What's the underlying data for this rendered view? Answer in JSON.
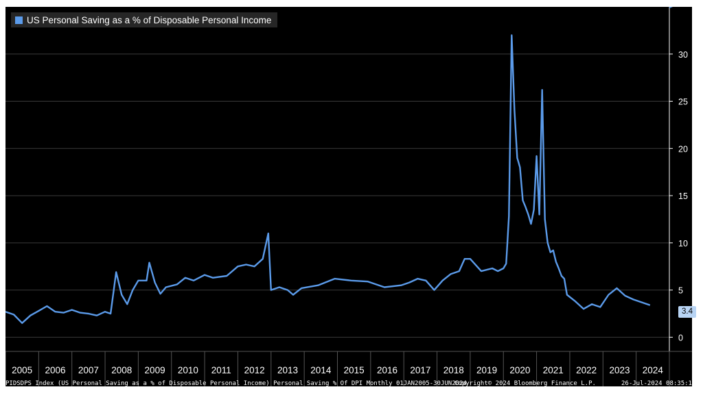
{
  "legend": {
    "label": "US Personal Saving as a % of Disposable Personal Income"
  },
  "footer": {
    "description": "PIDSDPS Index (US Personal Saving as a % of Disposable Personal Income) Personal Saving % Of DPI  Monthly 01JAN2005-30JUN2024",
    "copyright": "Copyright© 2024 Bloomberg Finance L.P.",
    "timestamp": "26-Jul-2024 08:35:14"
  },
  "colors": {
    "background": "#000000",
    "line": "#5b9bea",
    "grid": "#3a3a3a",
    "badge": "#b8d4f4",
    "axis_text": "#ffffff"
  },
  "chart_data": {
    "type": "line",
    "title": "US Personal Saving as a % of Disposable Personal Income",
    "xlabel": "",
    "ylabel": "",
    "ylim": [
      -1.5,
      35
    ],
    "yticks": [
      0,
      5,
      10,
      15,
      20,
      25,
      30
    ],
    "ytick_labels": [
      "0",
      "5",
      "10",
      "15",
      "20",
      "25",
      "30"
    ],
    "y_axis_position": "right",
    "grid": true,
    "legend_position": "top-left",
    "x_tick_labels": [
      "2005",
      "2006",
      "2007",
      "2008",
      "2009",
      "2010",
      "2011",
      "2012",
      "2013",
      "2014",
      "2015",
      "2016",
      "2017",
      "2018",
      "2019",
      "2020",
      "2021",
      "2022",
      "2023",
      "2024"
    ],
    "last_value": "3.4",
    "series": [
      {
        "name": "US Personal Saving as a % of Disposable Personal Income",
        "points": [
          [
            "2005-01",
            2.7
          ],
          [
            "2005-04",
            2.4
          ],
          [
            "2005-07",
            1.5
          ],
          [
            "2005-10",
            2.3
          ],
          [
            "2006-01",
            2.8
          ],
          [
            "2006-04",
            3.3
          ],
          [
            "2006-07",
            2.7
          ],
          [
            "2006-10",
            2.6
          ],
          [
            "2007-01",
            2.9
          ],
          [
            "2007-04",
            2.6
          ],
          [
            "2007-07",
            2.5
          ],
          [
            "2007-10",
            2.3
          ],
          [
            "2008-01",
            2.7
          ],
          [
            "2008-03",
            2.5
          ],
          [
            "2008-05",
            6.9
          ],
          [
            "2008-07",
            4.5
          ],
          [
            "2008-09",
            3.5
          ],
          [
            "2008-11",
            5.0
          ],
          [
            "2009-01",
            6.0
          ],
          [
            "2009-04",
            6.0
          ],
          [
            "2009-05",
            7.9
          ],
          [
            "2009-07",
            5.8
          ],
          [
            "2009-09",
            4.6
          ],
          [
            "2009-11",
            5.3
          ],
          [
            "2010-03",
            5.6
          ],
          [
            "2010-06",
            6.3
          ],
          [
            "2010-09",
            6.0
          ],
          [
            "2011-01",
            6.6
          ],
          [
            "2011-04",
            6.3
          ],
          [
            "2011-09",
            6.5
          ],
          [
            "2012-01",
            7.5
          ],
          [
            "2012-04",
            7.7
          ],
          [
            "2012-07",
            7.5
          ],
          [
            "2012-10",
            8.3
          ],
          [
            "2012-12",
            11.0
          ],
          [
            "2013-01",
            5.0
          ],
          [
            "2013-04",
            5.3
          ],
          [
            "2013-07",
            5.0
          ],
          [
            "2013-09",
            4.5
          ],
          [
            "2013-12",
            5.2
          ],
          [
            "2014-06",
            5.5
          ],
          [
            "2014-12",
            6.2
          ],
          [
            "2015-06",
            6.0
          ],
          [
            "2015-12",
            5.9
          ],
          [
            "2016-06",
            5.3
          ],
          [
            "2016-12",
            5.5
          ],
          [
            "2017-03",
            5.8
          ],
          [
            "2017-06",
            6.2
          ],
          [
            "2017-09",
            6.0
          ],
          [
            "2017-12",
            5.0
          ],
          [
            "2018-03",
            6.0
          ],
          [
            "2018-06",
            6.7
          ],
          [
            "2018-09",
            7.0
          ],
          [
            "2018-11",
            8.3
          ],
          [
            "2019-01",
            8.3
          ],
          [
            "2019-05",
            7.0
          ],
          [
            "2019-09",
            7.3
          ],
          [
            "2019-11",
            7.0
          ],
          [
            "2020-01",
            7.3
          ],
          [
            "2020-02",
            7.8
          ],
          [
            "2020-03",
            12.8
          ],
          [
            "2020-04",
            32.0
          ],
          [
            "2020-05",
            24.0
          ],
          [
            "2020-06",
            19.0
          ],
          [
            "2020-07",
            18.0
          ],
          [
            "2020-08",
            14.5
          ],
          [
            "2020-09",
            13.8
          ],
          [
            "2020-10",
            13.0
          ],
          [
            "2020-11",
            12.0
          ],
          [
            "2020-12",
            13.5
          ],
          [
            "2021-01",
            19.2
          ],
          [
            "2021-02",
            13.0
          ],
          [
            "2021-03",
            26.2
          ],
          [
            "2021-04",
            12.5
          ],
          [
            "2021-05",
            10.0
          ],
          [
            "2021-06",
            9.0
          ],
          [
            "2021-07",
            9.2
          ],
          [
            "2021-08",
            8.0
          ],
          [
            "2021-09",
            7.3
          ],
          [
            "2021-10",
            6.5
          ],
          [
            "2021-11",
            6.2
          ],
          [
            "2021-12",
            4.5
          ],
          [
            "2022-03",
            3.8
          ],
          [
            "2022-06",
            3.0
          ],
          [
            "2022-09",
            3.5
          ],
          [
            "2022-12",
            3.2
          ],
          [
            "2023-03",
            4.5
          ],
          [
            "2023-06",
            5.2
          ],
          [
            "2023-09",
            4.4
          ],
          [
            "2023-12",
            4.0
          ],
          [
            "2024-03",
            3.7
          ],
          [
            "2024-06",
            3.4
          ]
        ]
      }
    ]
  }
}
